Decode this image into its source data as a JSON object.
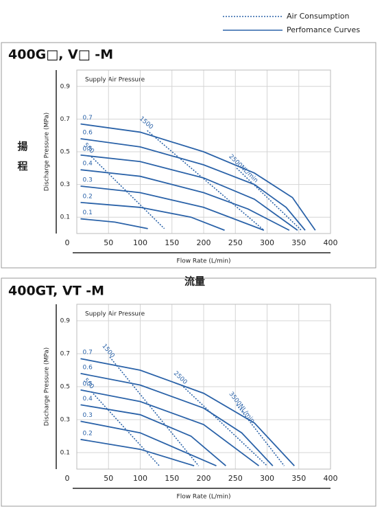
{
  "legend": [
    {
      "label": "Air Consumption",
      "style": "dotted",
      "color": "#2a62a8"
    },
    {
      "label": "Perfomance Curves",
      "style": "solid",
      "color": "#2a62a8"
    }
  ],
  "side_labels": {
    "y": "揚程",
    "x": "流量"
  },
  "chart_data": [
    {
      "type": "line",
      "title": "400G□, V□  -M",
      "annotation": "Supply Air Pressure",
      "x_label": "Flow Rate (L/min)",
      "y_label": "Discharge Pressure (MPa)",
      "xlim": [
        0,
        400
      ],
      "xticks": [
        0,
        50,
        100,
        150,
        200,
        250,
        300,
        350,
        400
      ],
      "ylim": [
        0,
        1
      ],
      "yticks": [
        0.1,
        0.3,
        0.5,
        0.7,
        0.9
      ],
      "grid": true,
      "series": [
        {
          "name": "0.7",
          "style": "solid",
          "color": "#2a62a8",
          "x": [
            6,
            100,
            200,
            280,
            340,
            376
          ],
          "values": [
            0.67,
            0.62,
            0.5,
            0.37,
            0.22,
            0.02
          ]
        },
        {
          "name": "0.6",
          "style": "solid",
          "color": "#2a62a8",
          "x": [
            6,
            100,
            200,
            280,
            330,
            360
          ],
          "values": [
            0.58,
            0.53,
            0.42,
            0.3,
            0.16,
            0.02
          ]
        },
        {
          "name": "0.5",
          "style": "solid",
          "color": "#2a62a8",
          "x": [
            6,
            100,
            200,
            280,
            348
          ],
          "values": [
            0.48,
            0.44,
            0.34,
            0.21,
            0.02
          ]
        },
        {
          "name": "0.4",
          "style": "solid",
          "color": "#2a62a8",
          "x": [
            6,
            100,
            200,
            270,
            335
          ],
          "values": [
            0.39,
            0.35,
            0.25,
            0.15,
            0.02
          ]
        },
        {
          "name": "0.3",
          "style": "solid",
          "color": "#2a62a8",
          "x": [
            6,
            100,
            200,
            295
          ],
          "values": [
            0.29,
            0.25,
            0.16,
            0.02
          ]
        },
        {
          "name": "0.2",
          "style": "solid",
          "color": "#2a62a8",
          "x": [
            6,
            100,
            180,
            233
          ],
          "values": [
            0.19,
            0.16,
            0.1,
            0.02
          ]
        },
        {
          "name": "0.1",
          "style": "solid",
          "color": "#2a62a8",
          "x": [
            6,
            60,
            112
          ],
          "values": [
            0.09,
            0.07,
            0.03
          ]
        },
        {
          "name": "500",
          "style": "dotted",
          "color": "#2a62a8",
          "x": [
            23,
            138
          ],
          "values": [
            0.47,
            0.03
          ]
        },
        {
          "name": "1500",
          "style": "dotted",
          "color": "#2a62a8",
          "x": [
            111,
            295
          ],
          "values": [
            0.63,
            0.02
          ]
        },
        {
          "name": "2500NL/min",
          "style": "dotted",
          "color": "#2a62a8",
          "x": [
            252,
            354
          ],
          "values": [
            0.4,
            0.02
          ]
        }
      ]
    },
    {
      "type": "line",
      "title": "400GT, VT  -M",
      "annotation": "Supply Air Pressure",
      "x_label": "Flow Rate (L/min)",
      "y_label": "Discharge Pressure (MPa)",
      "xlim": [
        0,
        400
      ],
      "xticks": [
        0,
        50,
        100,
        150,
        200,
        250,
        300,
        350,
        400
      ],
      "ylim": [
        0,
        1
      ],
      "yticks": [
        0.1,
        0.3,
        0.5,
        0.7,
        0.9
      ],
      "grid": true,
      "series": [
        {
          "name": "0.7",
          "style": "solid",
          "color": "#2a62a8",
          "x": [
            6,
            100,
            200,
            280,
            343
          ],
          "values": [
            0.67,
            0.6,
            0.46,
            0.28,
            0.02
          ]
        },
        {
          "name": "0.6",
          "style": "solid",
          "color": "#2a62a8",
          "x": [
            6,
            100,
            200,
            260,
            309
          ],
          "values": [
            0.58,
            0.51,
            0.37,
            0.22,
            0.02
          ]
        },
        {
          "name": "0.5",
          "style": "solid",
          "color": "#2a62a8",
          "x": [
            6,
            100,
            200,
            287
          ],
          "values": [
            0.48,
            0.41,
            0.27,
            0.02
          ]
        },
        {
          "name": "0.4",
          "style": "solid",
          "color": "#2a62a8",
          "x": [
            6,
            100,
            180,
            235
          ],
          "values": [
            0.39,
            0.33,
            0.2,
            0.02
          ]
        },
        {
          "name": "0.3",
          "style": "solid",
          "color": "#2a62a8",
          "x": [
            6,
            100,
            220
          ],
          "values": [
            0.29,
            0.22,
            0.02
          ]
        },
        {
          "name": "0.2",
          "style": "solid",
          "color": "#2a62a8",
          "x": [
            6,
            100,
            185
          ],
          "values": [
            0.18,
            0.12,
            0.02
          ]
        },
        {
          "name": "500",
          "style": "dotted",
          "color": "#2a62a8",
          "x": [
            23,
            130
          ],
          "values": [
            0.47,
            0.02
          ]
        },
        {
          "name": "1500",
          "style": "dotted",
          "color": "#2a62a8",
          "x": [
            52,
            192
          ],
          "values": [
            0.68,
            0.02
          ]
        },
        {
          "name": "2500",
          "style": "dotted",
          "color": "#2a62a8",
          "x": [
            165,
            300
          ],
          "values": [
            0.51,
            0.02
          ]
        },
        {
          "name": "3500NL/min",
          "style": "dotted",
          "color": "#2a62a8",
          "x": [
            252,
            327
          ],
          "values": [
            0.39,
            0.02
          ]
        }
      ]
    }
  ]
}
